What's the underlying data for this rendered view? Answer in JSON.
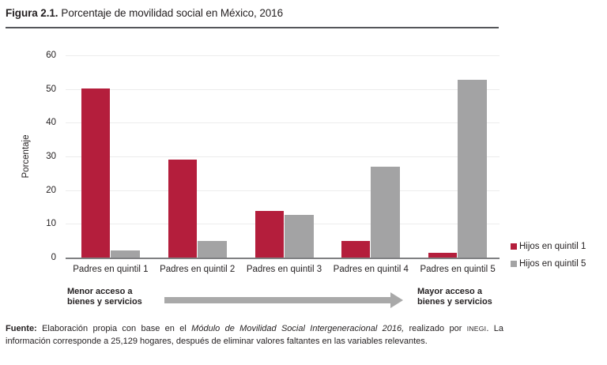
{
  "title": {
    "number": "Figura 2.1.",
    "text": "Porcentaje de movilidad social en México, 2016"
  },
  "chart_data": {
    "type": "bar",
    "categories": [
      "Padres en quintil 1",
      "Padres en quintil 2",
      "Padres en quintil 3",
      "Padres en quintil 4",
      "Padres en quintil 5"
    ],
    "series": [
      {
        "name": "Hijos en quintil 1",
        "color": "#b41e3c",
        "values": [
          50.2,
          29.0,
          13.8,
          5.0,
          1.5
        ]
      },
      {
        "name": "Hijos en quintil 5",
        "color": "#a3a3a4",
        "values": [
          2.2,
          5.0,
          12.7,
          27.0,
          52.8
        ]
      }
    ],
    "title": "Porcentaje de movilidad social en México, 2016",
    "xlabel": "",
    "ylabel": "Porcentaje",
    "ylim": [
      0,
      60
    ],
    "ytick_step": 10,
    "grid": true,
    "legend_position": "right"
  },
  "annotation": {
    "left_line1": "Menor acceso a",
    "left_line2": "bienes y servicios",
    "right_line1": "Mayor acceso a",
    "right_line2": "bienes y servicios"
  },
  "footer": {
    "source_label": "Fuente:",
    "line1_a": " Elaboración propia con base en el ",
    "line1_italic": "Módulo de Movilidad Social Intergeneracional 2016,",
    "line1_b": " realizado por ",
    "line1_inegi": "INEGI",
    "line1_c": ". La",
    "line2": "información corresponde a 25,129 hogares, después de eliminar valores faltantes en las variables relevantes."
  }
}
